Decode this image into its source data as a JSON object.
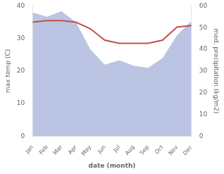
{
  "chart_data": {
    "type": "line",
    "xlabel": "date (month)",
    "ylabel": "max temp (C)",
    "y2label": "med. precipitation (kg/m2)",
    "categories": [
      "Jan",
      "Feb",
      "Mar",
      "Apr",
      "May",
      "Jun",
      "Jul",
      "Aug",
      "Sep",
      "Oct",
      "Nov",
      "Dec"
    ],
    "series": [
      {
        "type": "area",
        "color": "#bcc4e4",
        "axis": "y2",
        "values": [
          57.0,
          55.0,
          57.5,
          52.5,
          40.0,
          33.0,
          35.0,
          32.5,
          31.5,
          36.0,
          46.5,
          53.0
        ]
      },
      {
        "type": "line",
        "color": "#c0504d",
        "values": [
          35.0,
          35.5,
          35.5,
          35.0,
          33.0,
          29.5,
          28.5,
          28.5,
          28.5,
          29.5,
          33.5,
          34.0
        ]
      }
    ],
    "ylim": [
      0,
      40
    ],
    "yticks": [
      0,
      10,
      20,
      30,
      40
    ],
    "y2lim": [
      0,
      60
    ],
    "y2ticks": [
      0,
      10,
      20,
      30,
      40,
      50,
      60
    ],
    "grid": false
  }
}
